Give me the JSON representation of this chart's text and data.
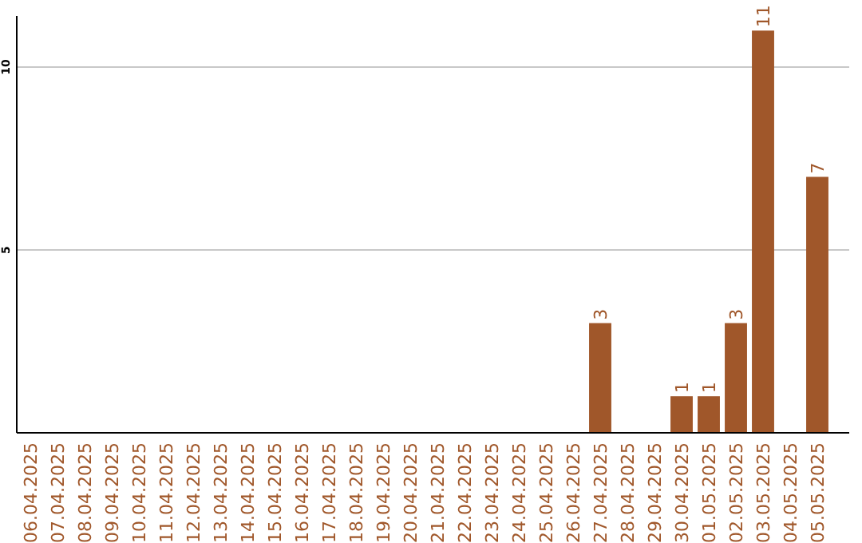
{
  "chart_data": {
    "type": "bar",
    "categories": [
      "06.04.2025",
      "07.04.2025",
      "08.04.2025",
      "09.04.2025",
      "10.04.2025",
      "11.04.2025",
      "12.04.2025",
      "13.04.2025",
      "14.04.2025",
      "15.04.2025",
      "16.04.2025",
      "17.04.2025",
      "18.04.2025",
      "19.04.2025",
      "20.04.2025",
      "21.04.2025",
      "22.04.2025",
      "23.04.2025",
      "24.04.2025",
      "25.04.2025",
      "26.04.2025",
      "27.04.2025",
      "28.04.2025",
      "29.04.2025",
      "30.04.2025",
      "01.05.2025",
      "02.05.2025",
      "03.05.2025",
      "04.05.2025",
      "05.05.2025"
    ],
    "values": [
      0,
      0,
      0,
      0,
      0,
      0,
      0,
      0,
      0,
      0,
      0,
      0,
      0,
      0,
      0,
      0,
      0,
      0,
      0,
      0,
      0,
      3,
      0,
      0,
      1,
      1,
      3,
      11,
      0,
      7
    ],
    "value_labels": [
      null,
      null,
      null,
      null,
      null,
      null,
      null,
      null,
      null,
      null,
      null,
      null,
      null,
      null,
      null,
      null,
      null,
      null,
      null,
      null,
      null,
      "3",
      null,
      null,
      "1",
      "1",
      "3",
      "11",
      null,
      "7"
    ],
    "color": "#a0572a",
    "ylim": [
      0,
      11.4
    ],
    "yticks": [
      5,
      10
    ],
    "grid": "y"
  }
}
